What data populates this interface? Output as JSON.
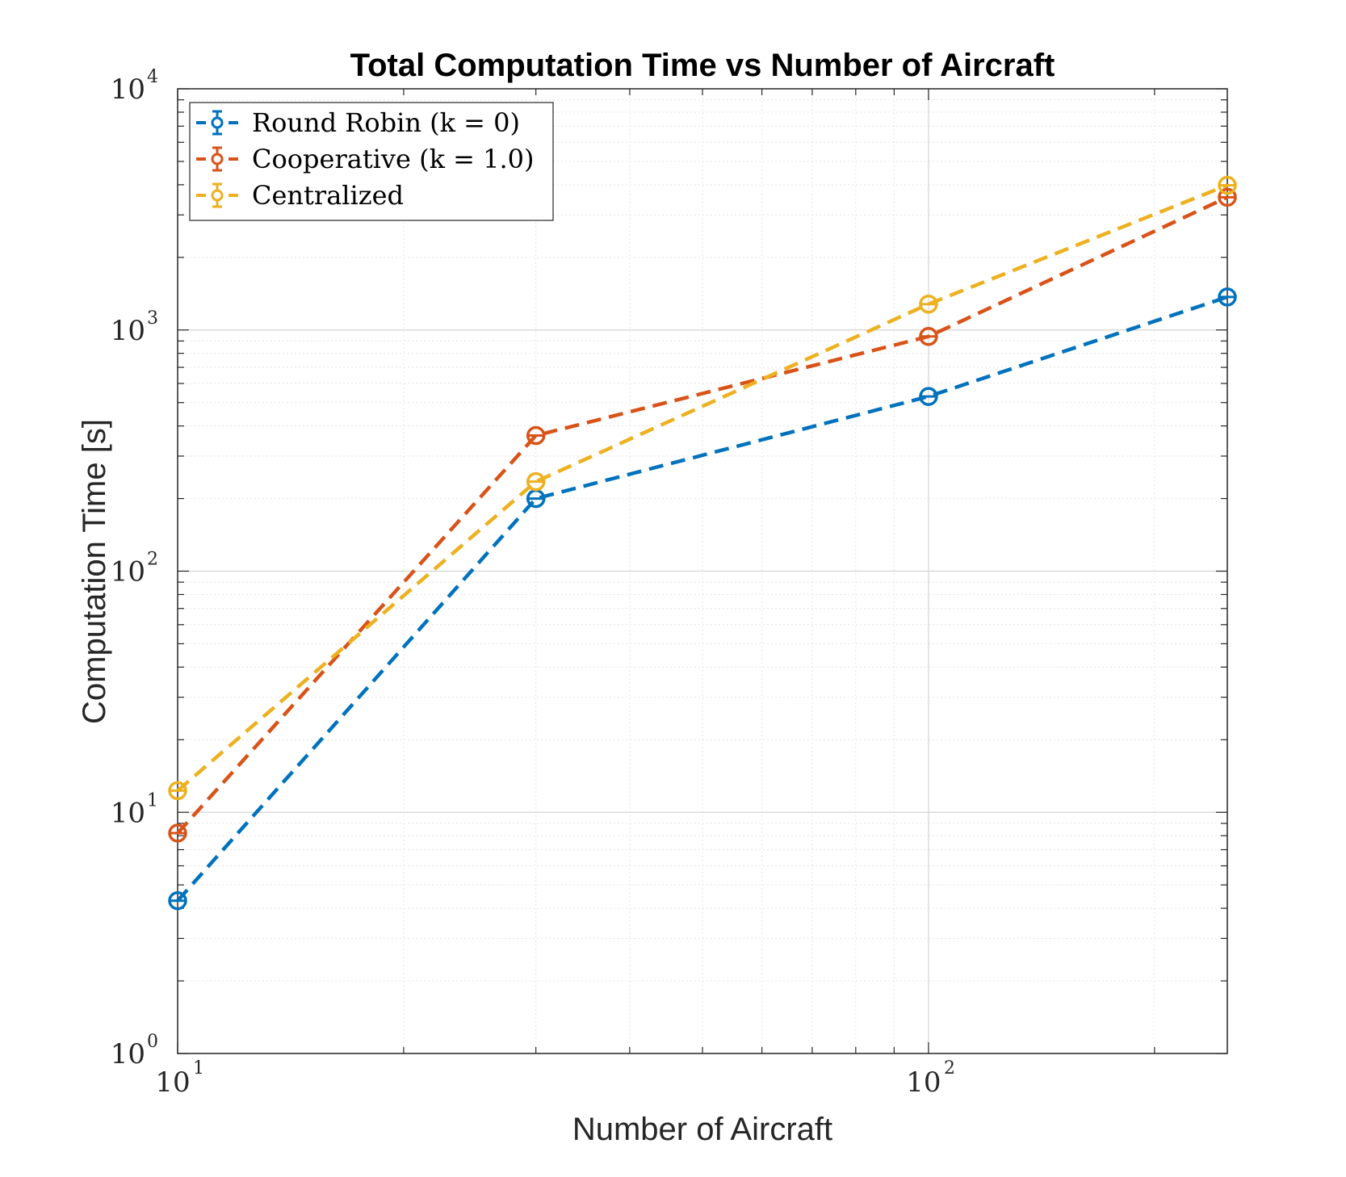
{
  "chart_data": {
    "type": "line",
    "title": "Total Computation Time vs Number of Aircraft",
    "xlabel": "Number of Aircraft",
    "ylabel": "Computation Time [s]",
    "x_scale": "log",
    "y_scale": "log",
    "xlim": [
      10,
      250
    ],
    "ylim": [
      1,
      10000
    ],
    "grid": true,
    "legend_position": "top-left",
    "x_ticks": [
      {
        "base": "10",
        "exp": "1"
      },
      {
        "base": "10",
        "exp": "2"
      }
    ],
    "y_ticks": [
      {
        "base": "10",
        "exp": "0"
      },
      {
        "base": "10",
        "exp": "1"
      },
      {
        "base": "10",
        "exp": "2"
      },
      {
        "base": "10",
        "exp": "3"
      },
      {
        "base": "10",
        "exp": "4"
      }
    ],
    "x": [
      10,
      30,
      100,
      250
    ],
    "series": [
      {
        "name": "Round Robin (k = 0)",
        "color": "#0072BD",
        "values": [
          4.3,
          200,
          530,
          1370
        ]
      },
      {
        "name": "Cooperative (k = 1.0)",
        "color": "#D95319",
        "values": [
          8.2,
          365,
          940,
          3550
        ]
      },
      {
        "name": "Centralized",
        "color": "#EDB120",
        "values": [
          12.3,
          235,
          1280,
          3980
        ]
      }
    ]
  }
}
